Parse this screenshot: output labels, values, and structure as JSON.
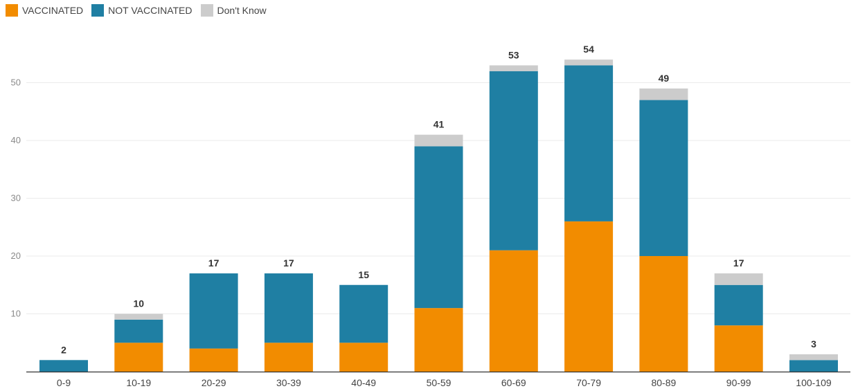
{
  "chart_data": {
    "type": "bar",
    "stacked": true,
    "categories": [
      "0-9",
      "10-19",
      "20-29",
      "30-39",
      "40-49",
      "50-59",
      "60-69",
      "70-79",
      "80-89",
      "90-99",
      "100-109"
    ],
    "series": [
      {
        "name": "VACCINATED",
        "color": "#f28c00",
        "values": [
          0,
          5,
          4,
          5,
          5,
          11,
          21,
          26,
          20,
          8,
          0
        ]
      },
      {
        "name": "NOT VACCINATED",
        "color": "#1f7fa3",
        "values": [
          2,
          4,
          13,
          12,
          10,
          28,
          31,
          27,
          27,
          7,
          2
        ]
      },
      {
        "name": "Don't Know",
        "color": "#cccccc",
        "values": [
          0,
          1,
          0,
          0,
          0,
          2,
          1,
          1,
          2,
          2,
          1
        ]
      }
    ],
    "totals": [
      "2",
      "10",
      "17",
      "17",
      "15",
      "41",
      "53",
      "54",
      "49",
      "17",
      "3"
    ],
    "yticks": [
      "10",
      "20",
      "30",
      "40",
      "50"
    ],
    "ylim": [
      0,
      60
    ],
    "grid": true,
    "legend_position": "top-left",
    "title": "",
    "xlabel": "",
    "ylabel": ""
  }
}
